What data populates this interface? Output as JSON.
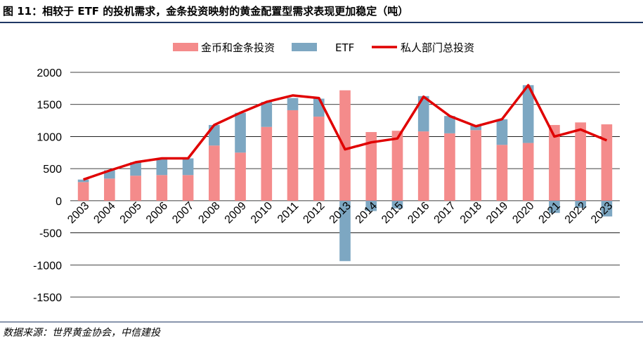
{
  "title": "图 11：相较于 ETF 的投机需求，金条投资映射的黄金配置型需求表现更加稳定（吨）",
  "source": "数据来源：世界黄金协会，中信建投",
  "colors": {
    "bar_gold": "#f48b8b",
    "etf": "#7da7c2",
    "line": "#e00000",
    "grid": "#000000"
  },
  "chart_data": {
    "type": "bar",
    "categories": [
      "2003",
      "2004",
      "2005",
      "2006",
      "2007",
      "2008",
      "2009",
      "2010",
      "2011",
      "2012",
      "2013",
      "2014",
      "2015",
      "2016",
      "2017",
      "2018",
      "2019",
      "2020",
      "2021",
      "2022",
      "2023"
    ],
    "series": [
      {
        "name": "金币和金条投资",
        "kind": "bar",
        "values": [
          290,
          345,
          390,
          400,
          400,
          860,
          750,
          1150,
          1410,
          1310,
          1720,
          1070,
          1090,
          1080,
          1050,
          1100,
          870,
          900,
          1180,
          1220,
          1190
        ]
      },
      {
        "name": "ETF",
        "kind": "bar",
        "values": [
          40,
          130,
          210,
          250,
          260,
          320,
          620,
          390,
          190,
          280,
          -940,
          -160,
          -120,
          550,
          270,
          70,
          400,
          900,
          -190,
          -110,
          -245
        ]
      },
      {
        "name": "私人部门总投资",
        "kind": "line",
        "values": [
          330,
          470,
          600,
          660,
          660,
          1180,
          1370,
          1540,
          1640,
          1600,
          800,
          910,
          970,
          1620,
          1320,
          1160,
          1270,
          1800,
          1000,
          1110,
          940
        ]
      }
    ],
    "ylim": [
      -1500,
      2000
    ],
    "yticks": [
      "2000",
      "1500",
      "1000",
      "500",
      "0",
      "-500",
      "-1000",
      "-1500"
    ],
    "grid": true,
    "legend_position": "top"
  }
}
